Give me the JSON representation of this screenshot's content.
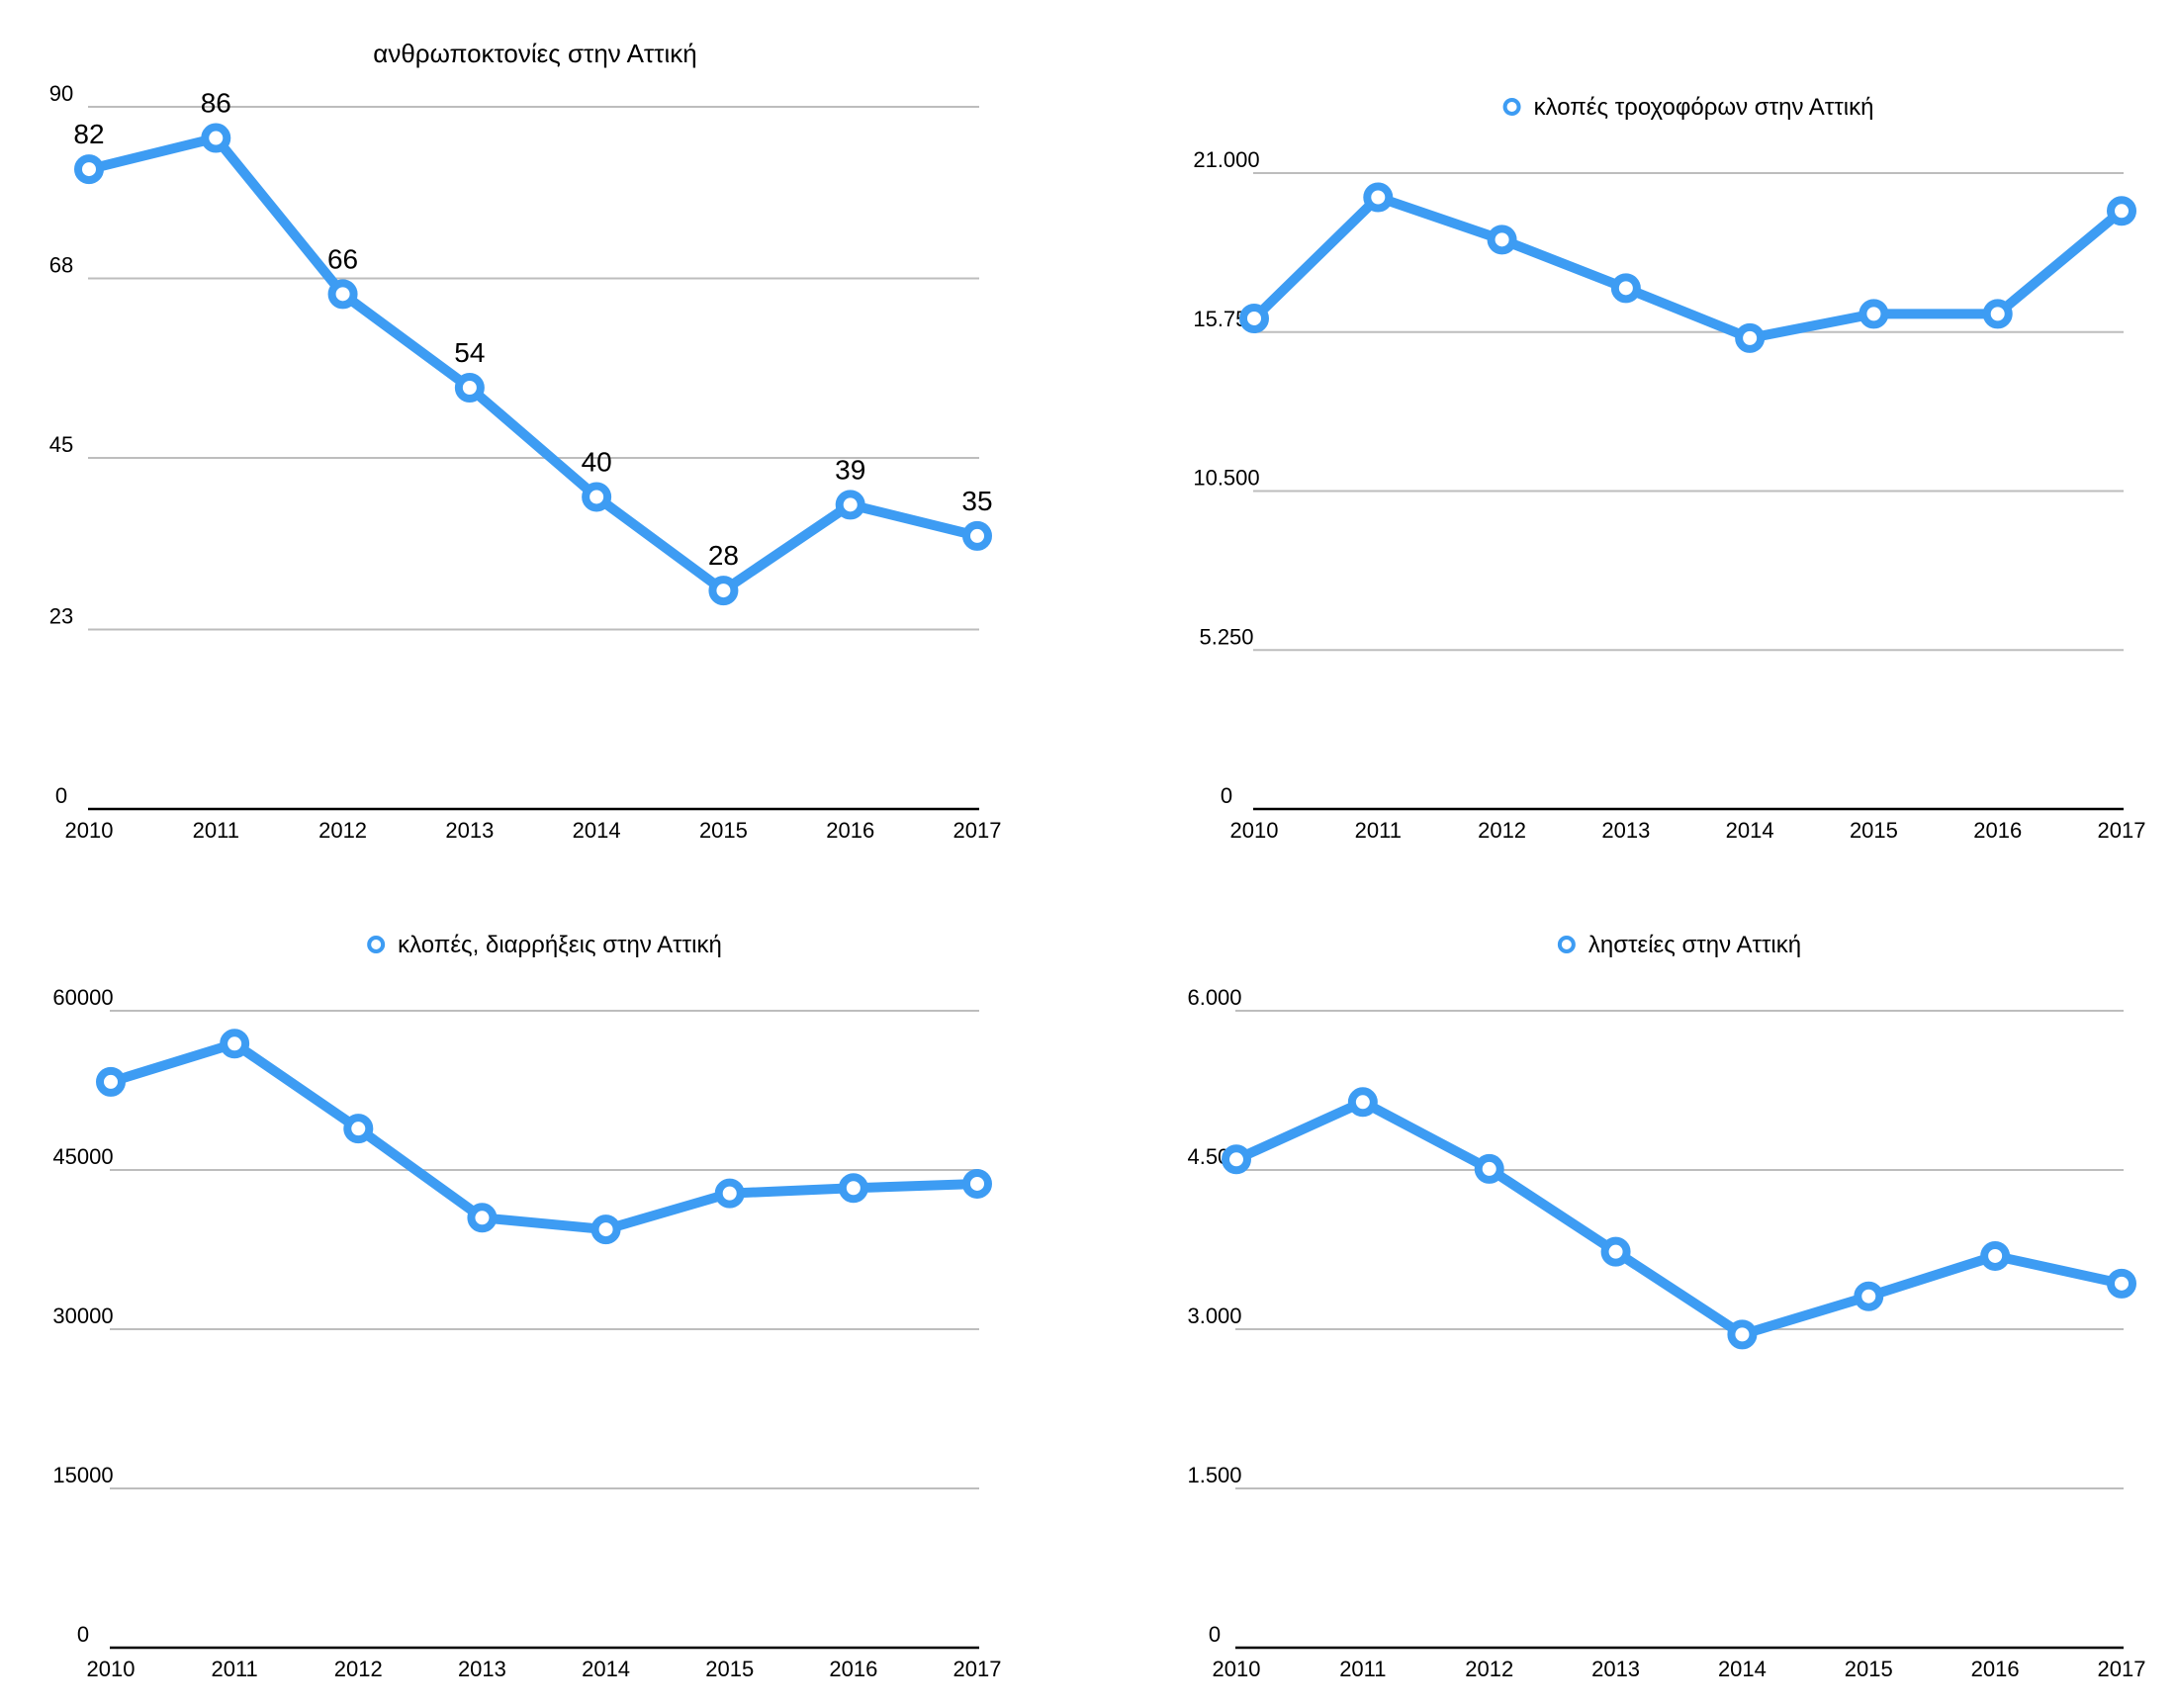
{
  "chart_data": [
    {
      "type": "line",
      "title": "ανθρωποκτονίες στην Αττική",
      "categories": [
        "2010",
        "2011",
        "2012",
        "2013",
        "2014",
        "2015",
        "2016",
        "2017"
      ],
      "series": [
        {
          "values": [
            82,
            86,
            66,
            54,
            40,
            28,
            39,
            35
          ],
          "data_labels": [
            "82",
            "86",
            "66",
            "54",
            "40",
            "28",
            "39",
            "35"
          ]
        }
      ],
      "ylim": [
        0,
        90
      ],
      "yticks": [
        0,
        23,
        45,
        68,
        90
      ],
      "ytick_labels": [
        "0",
        "23",
        "45",
        "68",
        "90"
      ],
      "grid": true,
      "legend": "none"
    },
    {
      "type": "line",
      "categories": [
        "2010",
        "2011",
        "2012",
        "2013",
        "2014",
        "2015",
        "2016",
        "2017"
      ],
      "series": [
        {
          "name": "κλοπές τροχοφόρων στην Αττική",
          "values": [
            16200,
            20200,
            18800,
            17200,
            15550,
            16350,
            16350,
            19750
          ]
        }
      ],
      "ylim": [
        0,
        21000
      ],
      "yticks": [
        0,
        5250,
        10500,
        15750,
        21000
      ],
      "ytick_labels": [
        "0",
        "5.250",
        "10.500",
        "15.750",
        "21.000"
      ],
      "grid": true,
      "legend": "top-center"
    },
    {
      "type": "line",
      "categories": [
        "2010",
        "2011",
        "2012",
        "2013",
        "2014",
        "2015",
        "2016",
        "2017"
      ],
      "series": [
        {
          "name": "κλοπές, διαρρήξεις στην Αττική",
          "values": [
            53300,
            56900,
            48900,
            40500,
            39400,
            42800,
            43300,
            43700
          ]
        }
      ],
      "ylim": [
        0,
        60000
      ],
      "yticks": [
        0,
        15000,
        30000,
        45000,
        60000
      ],
      "ytick_labels": [
        "0",
        "15000",
        "30000",
        "45000",
        "60000"
      ],
      "grid": true,
      "legend": "top-center"
    },
    {
      "type": "line",
      "categories": [
        "2010",
        "2011",
        "2012",
        "2013",
        "2014",
        "2015",
        "2016",
        "2017"
      ],
      "series": [
        {
          "name": "ληστείες στην Αττική",
          "values": [
            4600,
            5140,
            4510,
            3730,
            2950,
            3310,
            3690,
            3430
          ]
        }
      ],
      "ylim": [
        0,
        6000
      ],
      "yticks": [
        0,
        1500,
        3000,
        4500,
        6000
      ],
      "ytick_labels": [
        "0",
        "1.500",
        "3.000",
        "4.500",
        "6.000"
      ],
      "grid": true,
      "legend": "top-center"
    }
  ],
  "colors": {
    "series": "#3d9cf3",
    "grid": "#bdbdbd",
    "axis": "#000000",
    "text": "#000000"
  }
}
